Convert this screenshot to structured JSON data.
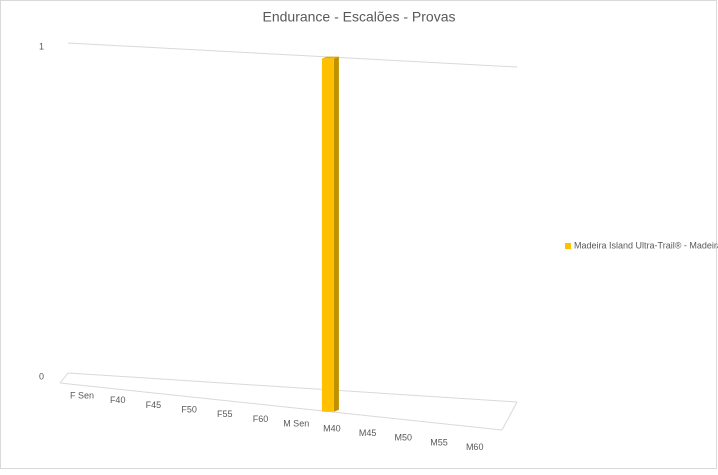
{
  "chart_data": {
    "type": "bar3d",
    "title": "Endurance - Escalões - Provas",
    "categories": [
      "F Sen",
      "F40",
      "F45",
      "F50",
      "F55",
      "F60",
      "M Sen",
      "M40",
      "M45",
      "M50",
      "M55",
      "M60"
    ],
    "series": [
      {
        "name": "Madeira Island Ultra-Trail® - Madeira",
        "color": "#ffc000",
        "values": [
          null,
          null,
          null,
          null,
          null,
          null,
          null,
          1,
          null,
          null,
          null,
          null
        ]
      }
    ],
    "ylim": [
      0,
      1
    ],
    "yticks": [
      0,
      1
    ],
    "grid": true,
    "legend": "right"
  }
}
